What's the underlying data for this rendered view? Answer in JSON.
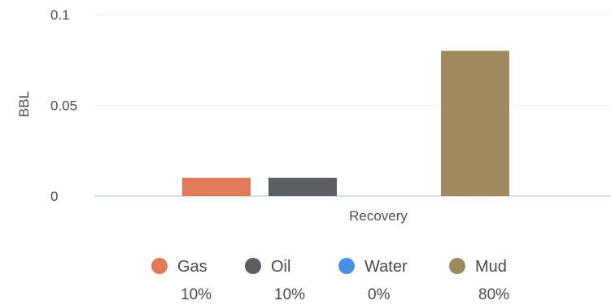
{
  "chart_data": {
    "type": "bar",
    "title": "",
    "xlabel": "Recovery",
    "ylabel": "BBL",
    "ylim": [
      0,
      0.1
    ],
    "yticks": [
      {
        "value": 0,
        "label": "0"
      },
      {
        "value": 0.05,
        "label": "0.05"
      },
      {
        "value": 0.1,
        "label": "0.1"
      }
    ],
    "grid": true,
    "legend_position": "bottom",
    "series": [
      {
        "name": "Gas",
        "value": 0.01,
        "percent": "10%",
        "color": "#e07a56"
      },
      {
        "name": "Oil",
        "value": 0.01,
        "percent": "10%",
        "color": "#5b5f62"
      },
      {
        "name": "Water",
        "value": 0,
        "percent": "0%",
        "color": "#4a90e2"
      },
      {
        "name": "Mud",
        "value": 0.08,
        "percent": "80%",
        "color": "#9e8a5c"
      }
    ]
  }
}
